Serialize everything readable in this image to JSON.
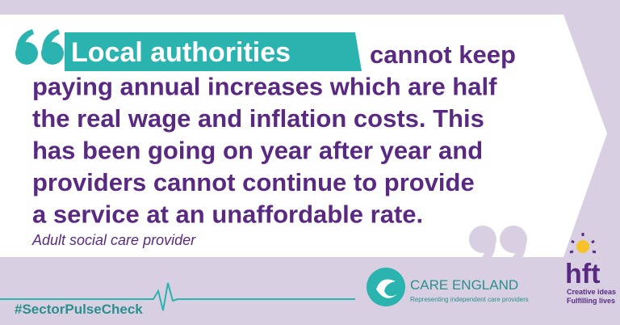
{
  "quote": {
    "highlight": "Local authorities",
    "lines": [
      "cannot keep",
      "paying annual increases which are half",
      "the real wage and inflation costs. This",
      "has been going on year after year and",
      "providers cannot continue to provide",
      "a service at an unaffordable rate."
    ]
  },
  "attribution": "Adult social care provider",
  "hashtag": "#SectorPulseCheck",
  "care_england": {
    "name": "CARE ENGLAND",
    "tagline": "Representing independent care providers"
  },
  "hft": {
    "name": "hft",
    "tagline": [
      "Creative ideas",
      "Fulfilling lives"
    ]
  }
}
